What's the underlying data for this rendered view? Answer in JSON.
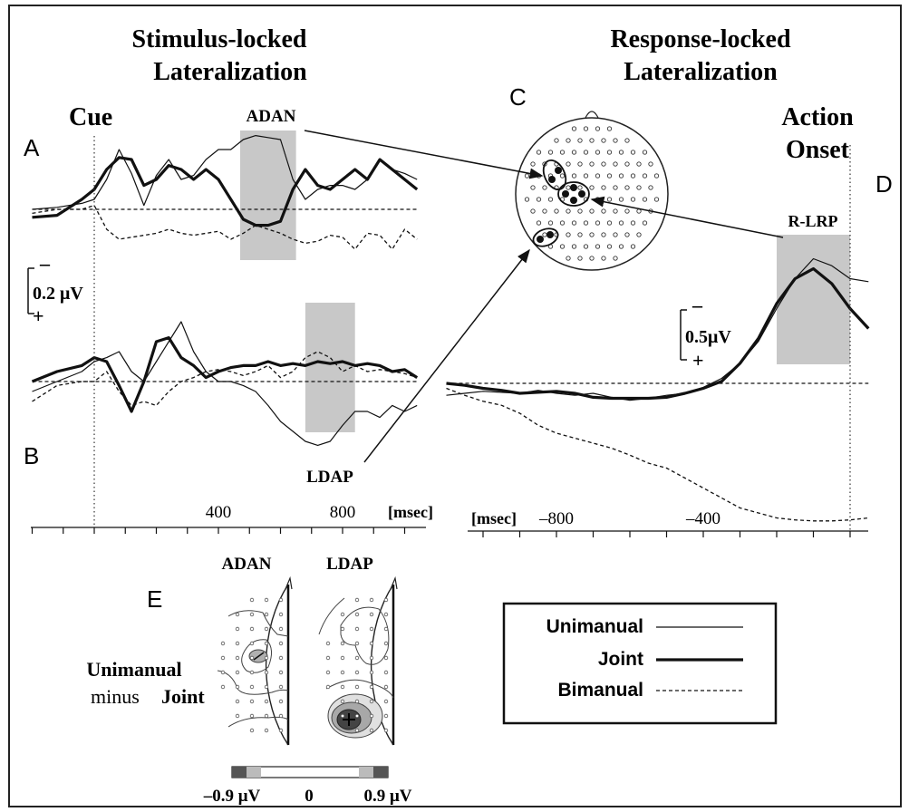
{
  "chart_data": [
    {
      "panel": "A",
      "type": "line",
      "title": "Stimulus-locked",
      "subtitle": "Lateralization",
      "marker_label": "Cue",
      "window_label": "ADAN",
      "window_ms": [
        470,
        650
      ],
      "scale_label": "0.2 μV",
      "scale_minus": "–",
      "scale_plus": "+",
      "xlim_ms": [
        -200,
        1040
      ],
      "series": [
        {
          "name": "Unimanual",
          "style": "thin",
          "x": [
            -200,
            -120,
            -40,
            0,
            40,
            80,
            120,
            160,
            200,
            240,
            280,
            320,
            360,
            400,
            440,
            480,
            520,
            560,
            600,
            640,
            680,
            720,
            760,
            800,
            840,
            880,
            920,
            960,
            1000,
            1040
          ],
          "y": [
            0,
            0.01,
            0.03,
            0.05,
            0.15,
            0.3,
            0.18,
            0.02,
            0.17,
            0.25,
            0.15,
            0.17,
            0.25,
            0.3,
            0.3,
            0.35,
            0.37,
            0.36,
            0.35,
            0.15,
            0.05,
            0.1,
            0.12,
            0.12,
            0.1,
            0.15,
            0.25,
            0.2,
            0.18,
            0.15
          ]
        },
        {
          "name": "Joint",
          "style": "thick",
          "x": [
            -200,
            -120,
            -40,
            0,
            40,
            80,
            120,
            160,
            200,
            240,
            280,
            320,
            360,
            400,
            440,
            480,
            520,
            560,
            600,
            640,
            680,
            720,
            760,
            800,
            840,
            880,
            920,
            960,
            1000,
            1040
          ],
          "y": [
            -0.04,
            -0.03,
            0.05,
            0.1,
            0.2,
            0.26,
            0.25,
            0.12,
            0.15,
            0.22,
            0.2,
            0.15,
            0.2,
            0.15,
            0.05,
            -0.05,
            -0.08,
            -0.08,
            -0.06,
            0.1,
            0.2,
            0.12,
            0.1,
            0.15,
            0.2,
            0.15,
            0.25,
            0.2,
            0.15,
            0.1
          ]
        },
        {
          "name": "Bimanual",
          "style": "dashed",
          "x": [
            -200,
            -120,
            -40,
            0,
            40,
            80,
            120,
            160,
            200,
            240,
            280,
            320,
            360,
            400,
            440,
            480,
            520,
            560,
            600,
            640,
            680,
            720,
            760,
            800,
            840,
            880,
            920,
            960,
            1000,
            1040
          ],
          "y": [
            -0.02,
            0,
            0,
            0.02,
            -0.1,
            -0.15,
            -0.14,
            -0.13,
            -0.12,
            -0.1,
            -0.12,
            -0.13,
            -0.12,
            -0.11,
            -0.15,
            -0.12,
            -0.08,
            -0.1,
            -0.12,
            -0.15,
            -0.17,
            -0.16,
            -0.13,
            -0.14,
            -0.2,
            -0.12,
            -0.13,
            -0.2,
            -0.1,
            -0.15
          ]
        }
      ]
    },
    {
      "panel": "B",
      "type": "line",
      "window_label": "LDAP",
      "window_ms": [
        680,
        840
      ],
      "x_tick_labels": [
        "400",
        "800"
      ],
      "x_ticks": [
        400,
        800
      ],
      "x_unit": "[msec]",
      "xlim_ms": [
        -200,
        1040
      ],
      "series": [
        {
          "name": "Unimanual",
          "style": "thin",
          "x": [
            -200,
            -120,
            -40,
            0,
            40,
            80,
            120,
            160,
            200,
            240,
            280,
            320,
            360,
            400,
            440,
            480,
            520,
            560,
            600,
            640,
            680,
            720,
            760,
            800,
            840,
            880,
            920,
            960,
            1000,
            1040
          ],
          "y": [
            -0.05,
            0,
            0.05,
            0.1,
            0.12,
            0.15,
            0.05,
            0,
            0.1,
            0.2,
            0.3,
            0.15,
            0.05,
            0,
            0,
            -0.02,
            -0.05,
            -0.12,
            -0.2,
            -0.25,
            -0.3,
            -0.32,
            -0.3,
            -0.22,
            -0.15,
            -0.15,
            -0.18,
            -0.12,
            -0.15,
            -0.12
          ]
        },
        {
          "name": "Joint",
          "style": "thick",
          "x": [
            -200,
            -120,
            -40,
            0,
            40,
            80,
            120,
            160,
            200,
            240,
            280,
            320,
            360,
            400,
            440,
            480,
            520,
            560,
            600,
            640,
            680,
            720,
            760,
            800,
            840,
            880,
            920,
            960,
            1000,
            1040
          ],
          "y": [
            0,
            0.05,
            0.08,
            0.12,
            0.1,
            -0.02,
            -0.15,
            0,
            0.2,
            0.22,
            0.12,
            0.08,
            0.02,
            0.05,
            0.07,
            0.08,
            0.08,
            0.1,
            0.08,
            0.09,
            0.08,
            0.1,
            0.09,
            0.1,
            0.08,
            0.09,
            0.08,
            0.05,
            0.06,
            0.02
          ]
        },
        {
          "name": "Bimanual",
          "style": "dashed",
          "x": [
            -200,
            -120,
            -40,
            0,
            40,
            80,
            120,
            160,
            200,
            240,
            280,
            320,
            360,
            400,
            440,
            480,
            520,
            560,
            600,
            640,
            680,
            720,
            760,
            800,
            840,
            880,
            920,
            960,
            1000,
            1040
          ],
          "y": [
            -0.1,
            -0.02,
            0,
            0,
            0.05,
            -0.05,
            -0.12,
            -0.1,
            -0.12,
            -0.05,
            0,
            0.02,
            0.05,
            0.06,
            0.05,
            0.03,
            0.05,
            0.08,
            0.02,
            0.05,
            0.12,
            0.15,
            0.12,
            0.05,
            0.08,
            0.05,
            0.06,
            0.05,
            0.04,
            0.02
          ]
        }
      ]
    },
    {
      "panel": "D",
      "type": "line",
      "title": "Response-locked",
      "subtitle": "Lateralization",
      "marker_label_1": "Action",
      "marker_label_2": "Onset",
      "window_label": "R-LRP",
      "window_ms": [
        -200,
        0
      ],
      "scale_label": "0.5μV",
      "scale_minus": "–",
      "scale_plus": "+",
      "x_tick_labels": [
        "–800",
        "–400"
      ],
      "x_ticks": [
        -800,
        -400
      ],
      "x_unit": "[msec]",
      "xlim_ms": [
        -1100,
        50
      ],
      "series": [
        {
          "name": "Unimanual",
          "style": "thin",
          "x": [
            -1100,
            -1050,
            -1000,
            -950,
            -900,
            -850,
            -800,
            -750,
            -700,
            -650,
            -600,
            -550,
            -500,
            -450,
            -400,
            -350,
            -300,
            -250,
            -200,
            -150,
            -100,
            -50,
            0,
            50
          ],
          "y": [
            -0.12,
            -0.1,
            -0.08,
            -0.09,
            -0.1,
            -0.07,
            -0.1,
            -0.12,
            -0.1,
            -0.14,
            -0.17,
            -0.15,
            -0.12,
            -0.1,
            -0.04,
            0.05,
            0.2,
            0.42,
            0.75,
            1.05,
            1.25,
            1.18,
            1.05,
            1.02
          ]
        },
        {
          "name": "Joint",
          "style": "thick",
          "x": [
            -1100,
            -1050,
            -1000,
            -950,
            -900,
            -850,
            -800,
            -750,
            -700,
            -650,
            -600,
            -550,
            -500,
            -450,
            -400,
            -350,
            -300,
            -250,
            -200,
            -150,
            -100,
            -50,
            0,
            50
          ],
          "y": [
            0,
            -0.02,
            -0.05,
            -0.07,
            -0.1,
            -0.09,
            -0.08,
            -0.1,
            -0.14,
            -0.15,
            -0.15,
            -0.15,
            -0.14,
            -0.1,
            -0.05,
            0.02,
            0.2,
            0.45,
            0.8,
            1.05,
            1.15,
            1.0,
            0.75,
            0.55
          ]
        },
        {
          "name": "Bimanual",
          "style": "dashed",
          "x": [
            -1100,
            -1050,
            -1000,
            -950,
            -900,
            -850,
            -800,
            -750,
            -700,
            -650,
            -600,
            -550,
            -500,
            -450,
            -400,
            -350,
            -300,
            -250,
            -200,
            -150,
            -100,
            -50,
            0,
            50
          ],
          "y": [
            -0.05,
            -0.12,
            -0.18,
            -0.22,
            -0.3,
            -0.42,
            -0.5,
            -0.55,
            -0.6,
            -0.65,
            -0.72,
            -0.8,
            -0.85,
            -0.95,
            -1.05,
            -1.15,
            -1.25,
            -1.3,
            -1.35,
            -1.37,
            -1.38,
            -1.38,
            -1.37,
            -1.35
          ]
        }
      ]
    }
  ],
  "panels": {
    "A": "A",
    "B": "B",
    "C": "C",
    "D": "D",
    "E": "E"
  },
  "topo_map_e": {
    "map1_label": "ADAN",
    "map2_label": "LDAP",
    "row_label_bold": "Unimanual",
    "row_label_plain": "minus",
    "row_label_bold2": "Joint",
    "colorbar_min": "–0.9 μV",
    "colorbar_mid": "0",
    "colorbar_max": "0.9 μV"
  },
  "legend": {
    "items": [
      {
        "label": "Unimanual",
        "style": "thin"
      },
      {
        "label": "Joint",
        "style": "thick"
      },
      {
        "label": "Bimanual",
        "style": "dashed"
      }
    ]
  }
}
